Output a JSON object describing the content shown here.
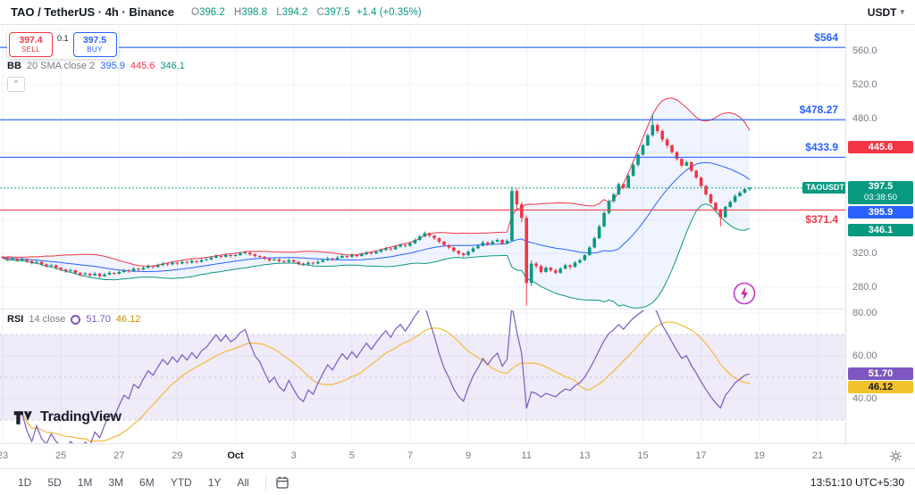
{
  "header": {
    "symbol_title": "TAO / TetherUS · 4h · Binance",
    "ohlc": {
      "o_label": "O",
      "o_value": "396.2",
      "h_label": "H",
      "h_value": "398.8",
      "l_label": "L",
      "l_value": "394.2",
      "c_label": "C",
      "c_value": "397.5",
      "change": "+1.4 (+0.35%)"
    },
    "currency_button": "USDT"
  },
  "trade_widget": {
    "sell_price": "397.4",
    "sell_label": "SELL",
    "spread": "0.1",
    "buy_price": "397.5",
    "buy_label": "BUY"
  },
  "legend": {
    "bb": {
      "name": "BB",
      "params": "20 SMA close 2",
      "basis_value": "395.9",
      "upper_value": "445.6",
      "lower_value": "346.1"
    },
    "rsi": {
      "name": "RSI",
      "params": "14 close",
      "value": "51.70",
      "ma_value": "46.12"
    },
    "collapse_glyph": "^"
  },
  "price_axis": {
    "ticks": [
      "560.0",
      "520.0",
      "480.0",
      "320.0",
      "280.0"
    ],
    "badges": {
      "upper_band": "445.6",
      "symbol": "TAOUSDT",
      "last_price": "397.5",
      "countdown": "03:38:50",
      "basis": "395.9",
      "lower_band": "346.1"
    }
  },
  "rsi_axis": {
    "ticks": [
      "80.00",
      "60.00",
      "40.00"
    ],
    "badges": {
      "rsi": "51.70",
      "rsi_ma": "46.12"
    }
  },
  "watermark": {
    "brand": "TradingView"
  },
  "toolbar": {
    "ranges": [
      "1D",
      "5D",
      "1M",
      "3M",
      "6M",
      "YTD",
      "1Y",
      "All"
    ],
    "clock": "13:51:10 UTC+5:30"
  },
  "colors": {
    "up": "#089981",
    "down": "#f23645",
    "bb_basis": "#2962ff",
    "bb_upper": "#f23645",
    "bb_lower": "#089981",
    "bb_fill": "rgba(41,98,255,0.07)",
    "rsi_line": "#7e57c2",
    "rsi_ma": "#f5b93a",
    "rsi_band": "rgba(126,87,194,0.12)",
    "grid": "#f0f3fa",
    "level_blue": "#2962ff",
    "level_red": "#f23645"
  },
  "chart_data": {
    "type": "candlestick",
    "symbol": "TAOUSDT",
    "interval": "4h",
    "exchange": "Binance",
    "last": {
      "o": 396.2,
      "h": 398.8,
      "l": 394.2,
      "c": 397.5,
      "change": 1.4,
      "change_pct": 0.35
    },
    "price_axis_range": [
      254,
      590
    ],
    "price_gridlines": [
      560,
      520,
      480,
      440,
      400,
      360,
      320,
      280
    ],
    "rsi_gridlines": [
      80,
      60,
      40
    ],
    "rsi_band": [
      70,
      30
    ],
    "bollinger": {
      "length": 20,
      "mult": 2,
      "basis": 395.9,
      "upper": 445.6,
      "lower": 346.1
    },
    "rsi": {
      "length": 14,
      "value": 51.7,
      "ma": 46.12
    },
    "levels": [
      {
        "label": "$564",
        "value": 564,
        "color": "#2962ff",
        "label_side": "above"
      },
      {
        "label": "$478.27",
        "value": 478.27,
        "color": "#2962ff",
        "label_side": "above"
      },
      {
        "label": "$433.9",
        "value": 433.9,
        "color": "#2962ff",
        "label_side": "above"
      },
      {
        "label": "$371.4",
        "value": 371.4,
        "color": "#f23645",
        "label_side": "below"
      }
    ],
    "date_ticks": [
      {
        "label": "23",
        "day": 0
      },
      {
        "label": "25",
        "day": 2
      },
      {
        "label": "27",
        "day": 4
      },
      {
        "label": "29",
        "day": 6
      },
      {
        "label": "Oct",
        "day": 8,
        "major": true
      },
      {
        "label": "3",
        "day": 10
      },
      {
        "label": "5",
        "day": 12
      },
      {
        "label": "7",
        "day": 14
      },
      {
        "label": "9",
        "day": 16
      },
      {
        "label": "11",
        "day": 18
      },
      {
        "label": "13",
        "day": 20
      },
      {
        "label": "15",
        "day": 22
      },
      {
        "label": "17",
        "day": 24
      },
      {
        "label": "19",
        "day": 26
      },
      {
        "label": "21",
        "day": 28
      }
    ],
    "candles": [
      [
        316,
        317,
        313,
        315
      ],
      [
        315,
        316,
        311,
        313
      ],
      [
        313,
        316,
        312,
        314
      ],
      [
        314,
        315,
        310,
        312
      ],
      [
        312,
        315,
        311,
        313
      ],
      [
        313,
        314,
        309,
        311
      ],
      [
        311,
        312,
        307,
        309
      ],
      [
        309,
        312,
        308,
        310
      ],
      [
        310,
        311,
        305,
        307
      ],
      [
        307,
        308,
        303,
        305
      ],
      [
        305,
        308,
        304,
        306
      ],
      [
        306,
        307,
        301,
        303
      ],
      [
        303,
        304,
        299,
        301
      ],
      [
        301,
        302,
        297,
        299
      ],
      [
        299,
        302,
        298,
        300
      ],
      [
        300,
        301,
        295,
        297
      ],
      [
        297,
        298,
        293,
        295
      ],
      [
        295,
        298,
        294,
        296
      ],
      [
        296,
        297,
        292,
        294
      ],
      [
        294,
        298,
        293,
        296
      ],
      [
        296,
        297,
        291,
        293
      ],
      [
        293,
        297,
        292,
        295
      ],
      [
        295,
        299,
        294,
        297
      ],
      [
        297,
        298,
        294,
        296
      ],
      [
        296,
        300,
        295,
        298
      ],
      [
        298,
        302,
        297,
        300
      ],
      [
        300,
        301,
        297,
        299
      ],
      [
        299,
        304,
        298,
        302
      ],
      [
        302,
        303,
        299,
        301
      ],
      [
        301,
        305,
        300,
        303
      ],
      [
        303,
        307,
        302,
        305
      ],
      [
        305,
        306,
        302,
        304
      ],
      [
        304,
        308,
        303,
        306
      ],
      [
        306,
        310,
        305,
        308
      ],
      [
        308,
        309,
        305,
        307
      ],
      [
        307,
        311,
        306,
        309
      ],
      [
        309,
        310,
        306,
        308
      ],
      [
        308,
        312,
        307,
        310
      ],
      [
        310,
        311,
        307,
        309
      ],
      [
        309,
        313,
        308,
        311
      ],
      [
        311,
        312,
        308,
        310
      ],
      [
        310,
        314,
        309,
        312
      ],
      [
        312,
        315,
        311,
        313
      ],
      [
        313,
        317,
        312,
        315
      ],
      [
        315,
        319,
        314,
        317
      ],
      [
        317,
        318,
        314,
        316
      ],
      [
        316,
        320,
        315,
        318
      ],
      [
        318,
        319,
        315,
        317
      ],
      [
        317,
        320,
        316,
        318
      ],
      [
        318,
        322,
        317,
        320
      ],
      [
        320,
        323,
        319,
        321
      ],
      [
        321,
        322,
        317,
        319
      ],
      [
        319,
        320,
        315,
        317
      ],
      [
        317,
        318,
        314,
        316
      ],
      [
        316,
        317,
        312,
        314
      ],
      [
        314,
        315,
        310,
        312
      ],
      [
        312,
        315,
        311,
        313
      ],
      [
        313,
        314,
        309,
        311
      ],
      [
        311,
        312,
        308,
        310
      ],
      [
        310,
        314,
        309,
        312
      ],
      [
        312,
        313,
        308,
        310
      ],
      [
        310,
        311,
        306,
        308
      ],
      [
        308,
        309,
        305,
        307
      ],
      [
        307,
        311,
        306,
        309
      ],
      [
        309,
        310,
        306,
        308
      ],
      [
        308,
        312,
        307,
        310
      ],
      [
        310,
        314,
        309,
        312
      ],
      [
        312,
        316,
        311,
        314
      ],
      [
        314,
        315,
        311,
        313
      ],
      [
        313,
        317,
        312,
        315
      ],
      [
        315,
        319,
        314,
        317
      ],
      [
        317,
        318,
        314,
        316
      ],
      [
        316,
        320,
        315,
        318
      ],
      [
        318,
        319,
        315,
        317
      ],
      [
        317,
        321,
        316,
        319
      ],
      [
        319,
        323,
        318,
        321
      ],
      [
        321,
        322,
        318,
        320
      ],
      [
        320,
        324,
        319,
        322
      ],
      [
        322,
        326,
        321,
        324
      ],
      [
        324,
        328,
        323,
        326
      ],
      [
        326,
        327,
        323,
        325
      ],
      [
        325,
        330,
        324,
        328
      ],
      [
        328,
        332,
        327,
        330
      ],
      [
        330,
        331,
        327,
        329
      ],
      [
        329,
        334,
        328,
        332
      ],
      [
        332,
        338,
        331,
        336
      ],
      [
        336,
        342,
        335,
        340
      ],
      [
        340,
        346,
        339,
        344
      ],
      [
        344,
        345,
        339,
        341
      ],
      [
        341,
        342,
        336,
        338
      ],
      [
        338,
        339,
        332,
        334
      ],
      [
        334,
        335,
        328,
        330
      ],
      [
        330,
        331,
        325,
        327
      ],
      [
        327,
        328,
        321,
        323
      ],
      [
        323,
        324,
        318,
        320
      ],
      [
        320,
        321,
        316,
        318
      ],
      [
        318,
        324,
        317,
        322
      ],
      [
        322,
        328,
        321,
        326
      ],
      [
        326,
        331,
        325,
        329
      ],
      [
        329,
        335,
        328,
        333
      ],
      [
        333,
        334,
        329,
        331
      ],
      [
        331,
        336,
        330,
        334
      ],
      [
        334,
        338,
        333,
        336
      ],
      [
        336,
        337,
        330,
        332
      ],
      [
        332,
        337,
        331,
        335
      ],
      [
        335,
        399,
        334,
        394
      ],
      [
        394,
        397,
        371,
        378
      ],
      [
        378,
        381,
        357,
        362
      ],
      [
        362,
        365,
        258,
        285
      ],
      [
        285,
        312,
        281,
        308
      ],
      [
        308,
        310,
        302,
        305
      ],
      [
        305,
        307,
        296,
        298
      ],
      [
        298,
        305,
        297,
        303
      ],
      [
        303,
        304,
        298,
        300
      ],
      [
        300,
        302,
        295,
        297
      ],
      [
        297,
        304,
        296,
        302
      ],
      [
        302,
        308,
        301,
        306
      ],
      [
        306,
        307,
        301,
        304
      ],
      [
        304,
        311,
        303,
        309
      ],
      [
        309,
        314,
        308,
        312
      ],
      [
        312,
        319,
        311,
        318
      ],
      [
        318,
        329,
        317,
        327
      ],
      [
        327,
        340,
        326,
        338
      ],
      [
        338,
        354,
        337,
        352
      ],
      [
        352,
        370,
        351,
        368
      ],
      [
        368,
        384,
        366,
        382
      ],
      [
        382,
        392,
        380,
        390
      ],
      [
        390,
        404,
        389,
        402
      ],
      [
        402,
        403,
        396,
        398
      ],
      [
        398,
        414,
        397,
        412
      ],
      [
        412,
        427,
        411,
        425
      ],
      [
        425,
        439,
        423,
        437
      ],
      [
        437,
        450,
        436,
        448
      ],
      [
        448,
        462,
        447,
        460
      ],
      [
        460,
        485,
        458,
        472
      ],
      [
        472,
        474,
        462,
        465
      ],
      [
        465,
        467,
        452,
        455
      ],
      [
        455,
        457,
        445,
        448
      ],
      [
        448,
        449,
        438,
        440
      ],
      [
        440,
        441,
        430,
        432
      ],
      [
        432,
        433,
        422,
        424
      ],
      [
        424,
        430,
        423,
        428
      ],
      [
        428,
        429,
        416,
        418
      ],
      [
        418,
        419,
        408,
        410
      ],
      [
        410,
        411,
        398,
        400
      ],
      [
        400,
        401,
        388,
        390
      ],
      [
        390,
        391,
        378,
        380
      ],
      [
        380,
        381,
        369,
        371
      ],
      [
        371,
        373,
        352,
        363
      ],
      [
        363,
        377,
        362,
        375
      ],
      [
        375,
        383,
        374,
        381
      ],
      [
        381,
        390,
        380,
        388
      ],
      [
        388,
        394,
        387,
        392
      ],
      [
        392,
        397,
        391,
        396.2
      ],
      [
        396.2,
        398.8,
        394.2,
        397.5
      ]
    ]
  }
}
